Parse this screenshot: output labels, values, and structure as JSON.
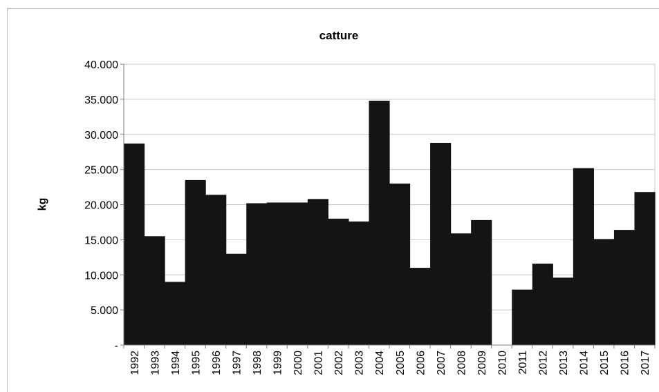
{
  "chart_data": {
    "type": "bar",
    "title": "catture",
    "xlabel": "",
    "ylabel": "kg",
    "ylim": [
      0,
      40000
    ],
    "yticks": [
      {
        "value": 0,
        "label": "-"
      },
      {
        "value": 5000,
        "label": "5.000"
      },
      {
        "value": 10000,
        "label": "10.000"
      },
      {
        "value": 15000,
        "label": "15.000"
      },
      {
        "value": 20000,
        "label": "20.000"
      },
      {
        "value": 25000,
        "label": "25.000"
      },
      {
        "value": 30000,
        "label": "30.000"
      },
      {
        "value": 35000,
        "label": "35.000"
      },
      {
        "value": 40000,
        "label": "40.000"
      }
    ],
    "grid": true,
    "bar_color": "#141414",
    "categories": [
      "1992",
      "1993",
      "1994",
      "1995",
      "1996",
      "1997",
      "1998",
      "1999",
      "2000",
      "2001",
      "2002",
      "2003",
      "2004",
      "2005",
      "2006",
      "2007",
      "2008",
      "2009",
      "2010",
      "2011",
      "2012",
      "2013",
      "2014",
      "2015",
      "2016",
      "2017"
    ],
    "values": [
      28700,
      15500,
      9000,
      23500,
      21400,
      13000,
      20200,
      20300,
      20300,
      20800,
      18000,
      17600,
      34800,
      23000,
      11000,
      28800,
      15900,
      17800,
      0,
      7900,
      11600,
      9600,
      25200,
      15100,
      16400,
      21800
    ]
  }
}
